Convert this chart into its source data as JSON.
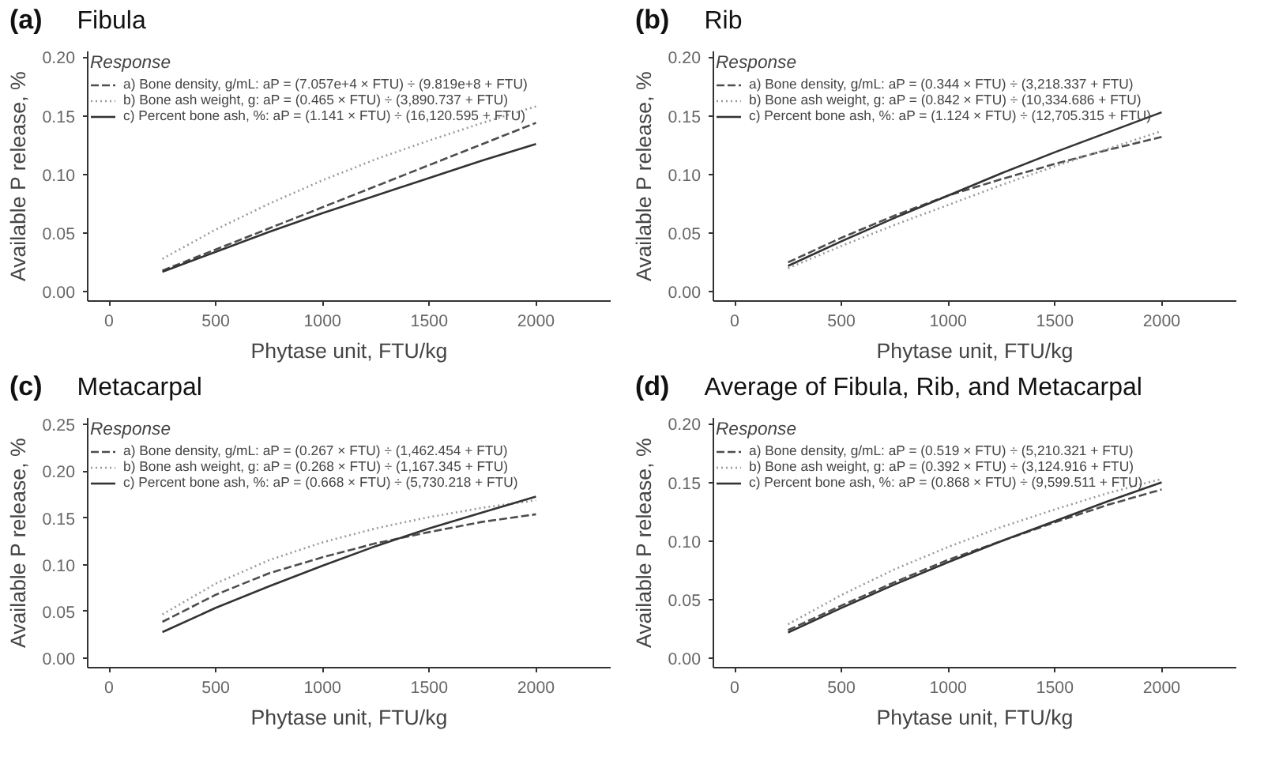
{
  "chart_data": [
    {
      "type": "line",
      "title": "Fibula",
      "annotations": [
        "(a)"
      ],
      "xlabel": "Phytase unit, FTU/kg",
      "ylabel": "Available P release, %",
      "legend_title": "Response",
      "legend": "top left",
      "x": [
        250,
        500,
        750,
        1000,
        1250,
        1500,
        1750,
        2000
      ],
      "series": [
        {
          "name": "a) Bone density, g/mL: aP = (7.057e+4 × FTU) ÷ (9.819e+8 + FTU)",
          "color": "#4d4d4d",
          "line_style": "dashed",
          "values": [
            0.018,
            0.036,
            0.054,
            0.072,
            0.09,
            0.108,
            0.126,
            0.144
          ]
        },
        {
          "name": "b) Bone ash weight, g: aP = (0.465 × FTU) ÷ (3,890.737 + FTU)",
          "color": "#999999",
          "line_style": "dotted",
          "values": [
            0.028,
            0.053,
            0.075,
            0.095,
            0.113,
            0.129,
            0.144,
            0.158
          ]
        },
        {
          "name": "c) Percent bone ash, %: aP = (1.141 × FTU) ÷ (16,120.595 + FTU)",
          "color": "#333333",
          "line_style": "solid",
          "values": [
            0.017,
            0.034,
            0.051,
            0.067,
            0.082,
            0.097,
            0.112,
            0.126
          ]
        }
      ],
      "xlim": [
        -100,
        2350
      ],
      "xticks": [
        0,
        500,
        1000,
        1500,
        2000
      ],
      "ylim": [
        -0.008,
        0.205
      ],
      "yticks": [
        {
          "value": 0,
          "label": "0.00"
        },
        {
          "value": 0.05,
          "label": "0.05"
        },
        {
          "value": 0.1,
          "label": "0.10"
        },
        {
          "value": 0.15,
          "label": "0.15"
        },
        {
          "value": 0.2,
          "label": "0.20"
        }
      ]
    },
    {
      "type": "line",
      "title": "Rib",
      "annotations": [
        "(b)"
      ],
      "xlabel": "Phytase unit, FTU/kg",
      "ylabel": "Available P release, %",
      "legend_title": "Response",
      "legend": "top left",
      "x": [
        250,
        500,
        750,
        1000,
        1250,
        1500,
        1750,
        2000
      ],
      "series": [
        {
          "name": "a) Bone density, g/mL: aP = (0.344 × FTU) ÷ (3,218.337 + FTU)",
          "color": "#4d4d4d",
          "line_style": "dashed",
          "values": [
            0.025,
            0.046,
            0.065,
            0.082,
            0.096,
            0.109,
            0.121,
            0.132
          ]
        },
        {
          "name": "b) Bone ash weight, g: aP = (0.842 × FTU) ÷ (10,334.686 + FTU)",
          "color": "#999999",
          "line_style": "dotted",
          "values": [
            0.02,
            0.039,
            0.057,
            0.074,
            0.091,
            0.107,
            0.122,
            0.137
          ]
        },
        {
          "name": "c) Percent bone ash, %: aP = (1.124 × FTU) ÷ (12,705.315 + FTU)",
          "color": "#333333",
          "line_style": "solid",
          "values": [
            0.022,
            0.043,
            0.063,
            0.082,
            0.101,
            0.119,
            0.136,
            0.153
          ]
        }
      ],
      "xlim": [
        -100,
        2350
      ],
      "xticks": [
        0,
        500,
        1000,
        1500,
        2000
      ],
      "ylim": [
        -0.008,
        0.205
      ],
      "yticks": [
        {
          "value": 0,
          "label": "0.00"
        },
        {
          "value": 0.05,
          "label": "0.05"
        },
        {
          "value": 0.1,
          "label": "0.10"
        },
        {
          "value": 0.15,
          "label": "0.15"
        },
        {
          "value": 0.2,
          "label": "0.20"
        }
      ]
    },
    {
      "type": "line",
      "title": "Metacarpal",
      "annotations": [
        "(c)"
      ],
      "xlabel": "Phytase unit, FTU/kg",
      "ylabel": "Available P release, %",
      "legend_title": "Response",
      "legend": "top left",
      "x": [
        250,
        500,
        750,
        1000,
        1250,
        1500,
        1750,
        2000
      ],
      "series": [
        {
          "name": "a) Bone density, g/mL: aP = (0.267 × FTU) ÷ (1,462.454 + FTU)",
          "color": "#4d4d4d",
          "line_style": "dashed",
          "values": [
            0.039,
            0.068,
            0.091,
            0.108,
            0.123,
            0.135,
            0.146,
            0.154
          ]
        },
        {
          "name": "b) Bone ash weight, g: aP = (0.268 × FTU) ÷ (1,167.345 + FTU)",
          "color": "#999999",
          "line_style": "dotted",
          "values": [
            0.047,
            0.08,
            0.105,
            0.124,
            0.139,
            0.151,
            0.161,
            0.169
          ]
        },
        {
          "name": "c) Percent bone ash, %: aP = (0.668 × FTU) ÷ (5,730.218 + FTU)",
          "color": "#333333",
          "line_style": "solid",
          "values": [
            0.028,
            0.054,
            0.077,
            0.099,
            0.12,
            0.139,
            0.156,
            0.173
          ]
        }
      ],
      "xlim": [
        -100,
        2350
      ],
      "xticks": [
        0,
        500,
        1000,
        1500,
        2000
      ],
      "ylim": [
        -0.01,
        0.257
      ],
      "yticks": [
        {
          "value": 0,
          "label": "0.00"
        },
        {
          "value": 0.05,
          "label": "0.05"
        },
        {
          "value": 0.1,
          "label": "0.10"
        },
        {
          "value": 0.15,
          "label": "0.15"
        },
        {
          "value": 0.2,
          "label": "0.20"
        },
        {
          "value": 0.25,
          "label": "0.25"
        }
      ]
    },
    {
      "type": "line",
      "title": "Average of Fibula, Rib, and Metacarpal",
      "annotations": [
        "(d)"
      ],
      "xlabel": "Phytase unit, FTU/kg",
      "ylabel": "Available P release, %",
      "legend_title": "Response",
      "legend": "top left",
      "x": [
        250,
        500,
        750,
        1000,
        1250,
        1500,
        1750,
        2000
      ],
      "series": [
        {
          "name": "a) Bone density, g/mL: aP = (0.519 × FTU) ÷ (5,210.321 + FTU)",
          "color": "#4d4d4d",
          "line_style": "dashed",
          "values": [
            0.024,
            0.045,
            0.065,
            0.084,
            0.1,
            0.116,
            0.131,
            0.144
          ]
        },
        {
          "name": "b) Bone ash weight, g: aP = (0.392 × FTU) ÷ (3,124.916 + FTU)",
          "color": "#999999",
          "line_style": "dotted",
          "values": [
            0.029,
            0.054,
            0.076,
            0.095,
            0.112,
            0.127,
            0.141,
            0.153
          ]
        },
        {
          "name": "c) Percent bone ash, %: aP = (0.868 × FTU) ÷ (9,599.511 + FTU)",
          "color": "#333333",
          "line_style": "solid",
          "values": [
            0.022,
            0.043,
            0.063,
            0.082,
            0.1,
            0.117,
            0.134,
            0.15
          ]
        }
      ],
      "xlim": [
        -100,
        2350
      ],
      "xticks": [
        0,
        500,
        1000,
        1500,
        2000
      ],
      "ylim": [
        -0.008,
        0.205
      ],
      "yticks": [
        {
          "value": 0,
          "label": "0.00"
        },
        {
          "value": 0.05,
          "label": "0.05"
        },
        {
          "value": 0.1,
          "label": "0.10"
        },
        {
          "value": 0.15,
          "label": "0.15"
        },
        {
          "value": 0.2,
          "label": "0.20"
        }
      ]
    }
  ]
}
